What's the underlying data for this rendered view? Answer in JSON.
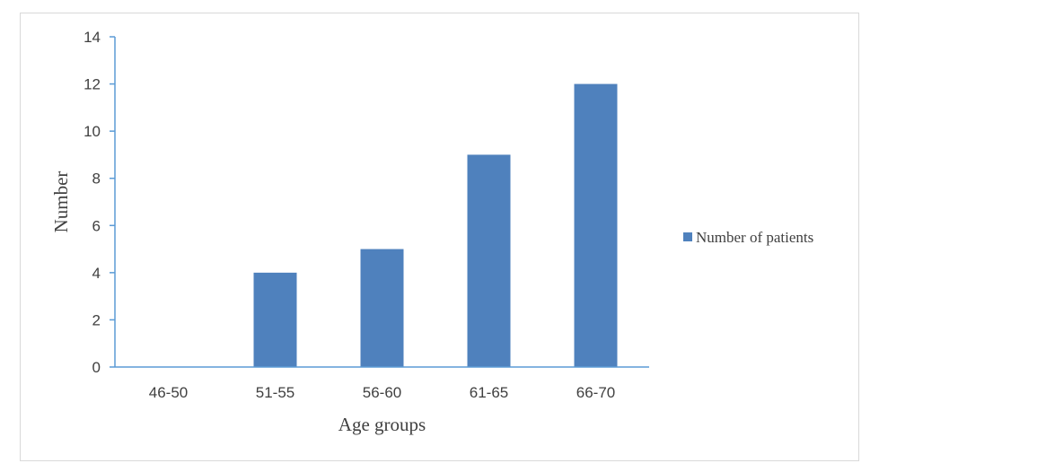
{
  "chart_data": {
    "type": "bar",
    "categories": [
      "46-50",
      "51-55",
      "56-60",
      "61-65",
      "66-70"
    ],
    "series": [
      {
        "name": "Number of patients",
        "values": [
          0,
          4,
          5,
          9,
          12
        ],
        "color": "#4f81bd"
      }
    ],
    "xlabel": "Age groups",
    "ylabel": "Number",
    "ylim": [
      0,
      14
    ],
    "yticks": [
      "0",
      "2",
      "4",
      "6",
      "8",
      "10",
      "12",
      "14"
    ],
    "grid": false,
    "legend_position": "right",
    "axis_color": "#5b9bd5"
  }
}
